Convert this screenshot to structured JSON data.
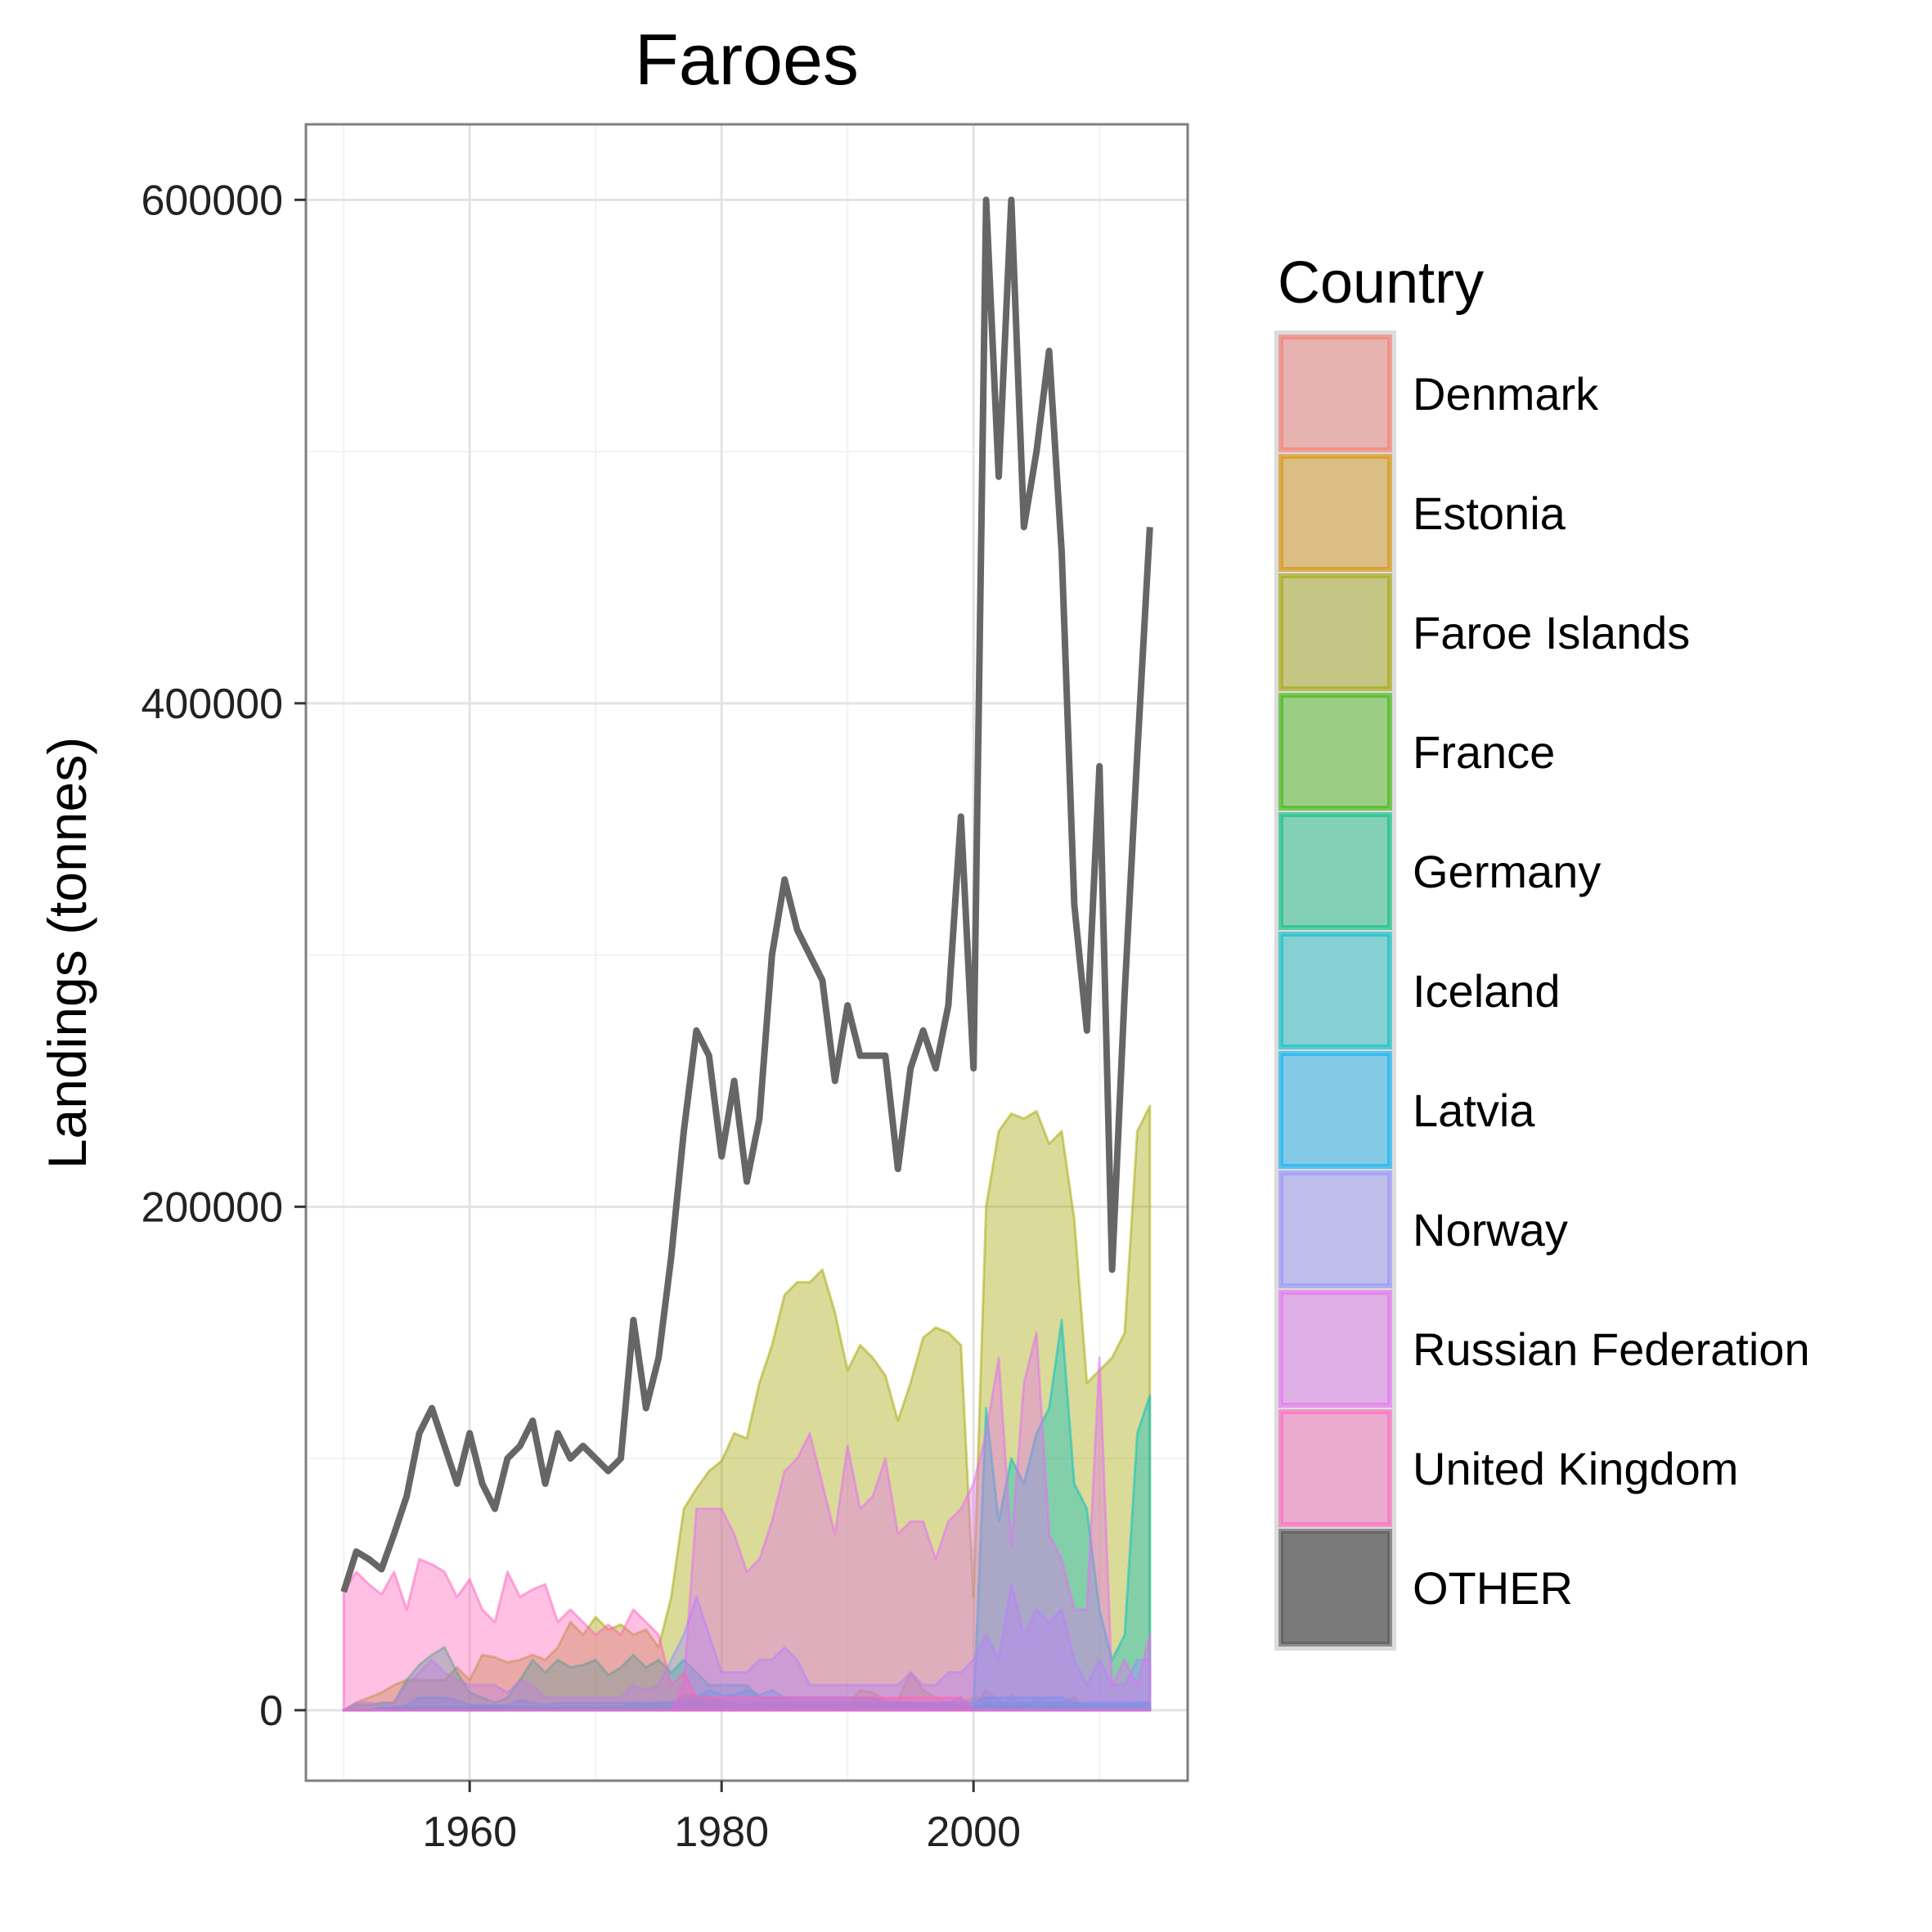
{
  "chart_data": {
    "type": "area",
    "title": "Faroes",
    "xlabel": "",
    "ylabel": "Landings (tonnes)",
    "xlim": [
      1947,
      2017
    ],
    "ylim": [
      -28000,
      630000
    ],
    "x_ticks": [
      1960,
      1980,
      2000
    ],
    "y_ticks": [
      0,
      200000,
      400000,
      600000
    ],
    "y_tick_labels": [
      "0",
      "200000",
      "400000",
      "600000"
    ],
    "grid": true,
    "legend_title": "Country",
    "legend_position": "right",
    "x": [
      1950,
      1951,
      1952,
      1953,
      1954,
      1955,
      1956,
      1957,
      1958,
      1959,
      1960,
      1961,
      1962,
      1963,
      1964,
      1965,
      1966,
      1967,
      1968,
      1969,
      1970,
      1971,
      1972,
      1973,
      1974,
      1975,
      1976,
      1977,
      1978,
      1979,
      1980,
      1981,
      1982,
      1983,
      1984,
      1985,
      1986,
      1987,
      1988,
      1989,
      1990,
      1991,
      1992,
      1993,
      1994,
      1995,
      1996,
      1997,
      1998,
      1999,
      2000,
      2001,
      2002,
      2003,
      2004,
      2005,
      2006,
      2007,
      2008,
      2009,
      2010,
      2011,
      2012,
      2013,
      2014
    ],
    "series": [
      {
        "name": "Denmark",
        "color": "#F8766D",
        "values": [
          0,
          0,
          0,
          0,
          0,
          0,
          0,
          0,
          0,
          0,
          0,
          0,
          0,
          0,
          0,
          0,
          0,
          0,
          0,
          0,
          0,
          0,
          0,
          0,
          0,
          0,
          0,
          3000,
          4000,
          3000,
          1000,
          1000,
          0,
          0,
          0,
          1000,
          0,
          0,
          0,
          0,
          0,
          1000,
          1000,
          1000,
          1000,
          2000,
          1000,
          0,
          0,
          0,
          0,
          8000,
          4000,
          0,
          3000,
          0,
          2000,
          1000,
          1000,
          0,
          0,
          0,
          0,
          0,
          0
        ]
      },
      {
        "name": "Estonia",
        "color": "#D89000",
        "values": [
          0,
          0,
          0,
          0,
          0,
          0,
          0,
          0,
          0,
          0,
          0,
          0,
          0,
          0,
          0,
          0,
          0,
          0,
          0,
          0,
          0,
          0,
          0,
          0,
          0,
          0,
          0,
          6000,
          6000,
          5000,
          2000,
          1000,
          1000,
          1000,
          1000,
          4000,
          1000,
          2000,
          1000,
          2000,
          2000,
          8000,
          7000,
          4000,
          4000,
          15000,
          8000,
          5000,
          3000,
          3000,
          5000,
          5000,
          -3000,
          6000,
          0,
          5000,
          3000,
          3000,
          5000,
          0,
          0,
          0,
          0,
          0,
          0
        ]
      },
      {
        "name": "Faroe Islands",
        "color": "#A3A500",
        "values": [
          0,
          3000,
          5000,
          7000,
          10000,
          12000,
          12000,
          12000,
          12000,
          17000,
          12000,
          22000,
          21000,
          19000,
          20000,
          22000,
          20000,
          25000,
          35000,
          30000,
          37000,
          32000,
          34000,
          30000,
          32000,
          25000,
          45000,
          80000,
          88000,
          95000,
          99000,
          110000,
          108000,
          130000,
          145000,
          165000,
          170000,
          170000,
          175000,
          158000,
          135000,
          145000,
          140000,
          133000,
          115000,
          130000,
          148000,
          152000,
          150000,
          145000,
          45000,
          200000,
          230000,
          237000,
          235000,
          238000,
          225000,
          230000,
          195000,
          130000,
          135000,
          140000,
          150000,
          230000,
          240000
        ]
      },
      {
        "name": "France",
        "color": "#39B600",
        "values": [
          0,
          0,
          0,
          0,
          0,
          1000,
          1000,
          1000,
          1000,
          1000,
          1000,
          1000,
          1000,
          1000,
          1000,
          1000,
          1000,
          1000,
          1000,
          1000,
          1000,
          1000,
          1000,
          1000,
          1000,
          1000,
          1000,
          4000,
          4000,
          4000,
          4000,
          2000,
          2000,
          2000,
          2000,
          2000,
          2000,
          2000,
          2000,
          2000,
          2000,
          2000,
          2000,
          2000,
          2000,
          2000,
          2000,
          2000,
          2000,
          2000,
          1000,
          2000,
          2000,
          2000,
          2000,
          2000,
          2000,
          2000,
          2000,
          2000,
          2000,
          2000,
          2000,
          2000,
          2000
        ]
      },
      {
        "name": "Germany",
        "color": "#00BF7D",
        "values": [
          0,
          2000,
          2000,
          3000,
          3000,
          12000,
          18000,
          22000,
          25000,
          15000,
          7000,
          5000,
          3000,
          5000,
          12000,
          20000,
          15000,
          20000,
          17000,
          18000,
          20000,
          14000,
          17000,
          22000,
          17000,
          20000,
          15000,
          20000,
          15000,
          10000,
          10000,
          10000,
          10000,
          5000,
          5000,
          5000,
          5000,
          5000,
          5000,
          5000,
          5000,
          5000,
          5000,
          3000,
          3000,
          3000,
          2000,
          2000,
          2000,
          2000,
          1000,
          3000,
          3000,
          3000,
          3000,
          3000,
          3000,
          3000,
          3000,
          2000,
          2000,
          2000,
          2000,
          3000,
          3000
        ]
      },
      {
        "name": "Iceland",
        "color": "#00BFC4",
        "values": [
          0,
          0,
          0,
          1000,
          1000,
          1000,
          1000,
          1000,
          1000,
          1000,
          1000,
          1000,
          1000,
          1000,
          1000,
          1000,
          1000,
          1000,
          1000,
          1000,
          1000,
          1000,
          1000,
          3000,
          2000,
          3000,
          3000,
          5000,
          5000,
          8000,
          6000,
          6000,
          8000,
          6000,
          8000,
          5000,
          5000,
          5000,
          5000,
          5000,
          5000,
          5000,
          5000,
          3000,
          3000,
          3000,
          3000,
          3000,
          3000,
          5000,
          -40000,
          120000,
          75000,
          100000,
          90000,
          110000,
          120000,
          155000,
          90000,
          80000,
          40000,
          20000,
          30000,
          110000,
          125000
        ]
      },
      {
        "name": "Latvia",
        "color": "#00B0F6",
        "values": [
          0,
          0,
          0,
          1000,
          1000,
          2000,
          5000,
          5000,
          5000,
          4000,
          2000,
          2000,
          2000,
          2000,
          4000,
          3000,
          2000,
          3000,
          3000,
          3000,
          3000,
          3000,
          3000,
          3000,
          3000,
          3000,
          3000,
          3000,
          3000,
          3000,
          3000,
          3000,
          3000,
          3000,
          3000,
          3000,
          3000,
          3000,
          3000,
          3000,
          3000,
          3000,
          3000,
          3000,
          3000,
          3000,
          3000,
          3000,
          3000,
          3000,
          3000,
          5000,
          5000,
          5000,
          5000,
          5000,
          5000,
          5000,
          3000,
          3000,
          3000,
          3000,
          3000,
          3000,
          3000
        ]
      },
      {
        "name": "Norway",
        "color": "#9590FF",
        "values": [
          0,
          3000,
          3000,
          2000,
          3000,
          10000,
          15000,
          20000,
          15000,
          12000,
          10000,
          10000,
          10000,
          7000,
          12000,
          10000,
          5000,
          5000,
          5000,
          5000,
          5000,
          5000,
          5000,
          10000,
          8000,
          10000,
          20000,
          30000,
          45000,
          30000,
          15000,
          15000,
          15000,
          20000,
          20000,
          25000,
          20000,
          10000,
          10000,
          10000,
          10000,
          10000,
          10000,
          10000,
          10000,
          15000,
          10000,
          10000,
          15000,
          15000,
          20000,
          30000,
          20000,
          50000,
          30000,
          40000,
          35000,
          40000,
          20000,
          10000,
          20000,
          10000,
          10000,
          20000,
          20000
        ]
      },
      {
        "name": "Russian Federation",
        "color": "#E76BF3",
        "values": [
          0,
          0,
          0,
          0,
          0,
          0,
          0,
          0,
          0,
          0,
          0,
          0,
          0,
          0,
          0,
          0,
          0,
          0,
          0,
          0,
          0,
          0,
          0,
          0,
          0,
          0,
          0,
          10000,
          80000,
          80000,
          80000,
          70000,
          55000,
          60000,
          75000,
          95000,
          100000,
          110000,
          90000,
          70000,
          105000,
          80000,
          85000,
          100000,
          70000,
          75000,
          75000,
          60000,
          75000,
          80000,
          90000,
          110000,
          140000,
          65000,
          130000,
          150000,
          70000,
          60000,
          40000,
          40000,
          140000,
          10000,
          20000,
          10000,
          30000
        ]
      },
      {
        "name": "United Kingdom",
        "color": "#FF62BC",
        "values": [
          47000,
          55000,
          50000,
          46000,
          55000,
          40000,
          60000,
          58000,
          55000,
          45000,
          52000,
          40000,
          35000,
          55000,
          45000,
          48000,
          50000,
          35000,
          40000,
          35000,
          30000,
          34000,
          30000,
          40000,
          35000,
          30000,
          10000,
          15000,
          5000,
          5000,
          5000,
          5000,
          5000,
          5000,
          5000,
          5000,
          5000,
          5000,
          5000,
          5000,
          5000,
          5000,
          5000,
          5000,
          5000,
          5000,
          5000,
          5000,
          5000,
          5000,
          0,
          0,
          0,
          0,
          0,
          0,
          0,
          0,
          0,
          0,
          0,
          0,
          0,
          0,
          0
        ]
      },
      {
        "name": "OTHER",
        "color": "#595959",
        "values": [
          0,
          0,
          0,
          0,
          0,
          0,
          0,
          0,
          0,
          0,
          0,
          0,
          0,
          0,
          0,
          0,
          0,
          0,
          0,
          0,
          0,
          0,
          0,
          0,
          0,
          0,
          0,
          0,
          0,
          0,
          0,
          0,
          0,
          0,
          0,
          0,
          0,
          0,
          0,
          0,
          0,
          0,
          0,
          0,
          0,
          0,
          0,
          0,
          0,
          0,
          0,
          0,
          0,
          0,
          0,
          0,
          0,
          0,
          0,
          0,
          0,
          0,
          0,
          0,
          0
        ]
      }
    ],
    "total": [
      47000,
      63000,
      60000,
      56000,
      70000,
      85000,
      110000,
      120000,
      105000,
      90000,
      110000,
      90000,
      80000,
      100000,
      105000,
      115000,
      90000,
      110000,
      100000,
      105000,
      100000,
      95000,
      100000,
      155000,
      120000,
      140000,
      180000,
      230000,
      270000,
      260000,
      220000,
      250000,
      210000,
      235000,
      300000,
      330000,
      310000,
      300000,
      290000,
      250000,
      280000,
      260000,
      260000,
      260000,
      215000,
      255000,
      270000,
      255000,
      280000,
      355000,
      255000,
      600000,
      490000,
      600000,
      470000,
      500000,
      540000,
      460000,
      320000,
      270000,
      375000,
      175000,
      285000,
      380000,
      470000
    ]
  }
}
